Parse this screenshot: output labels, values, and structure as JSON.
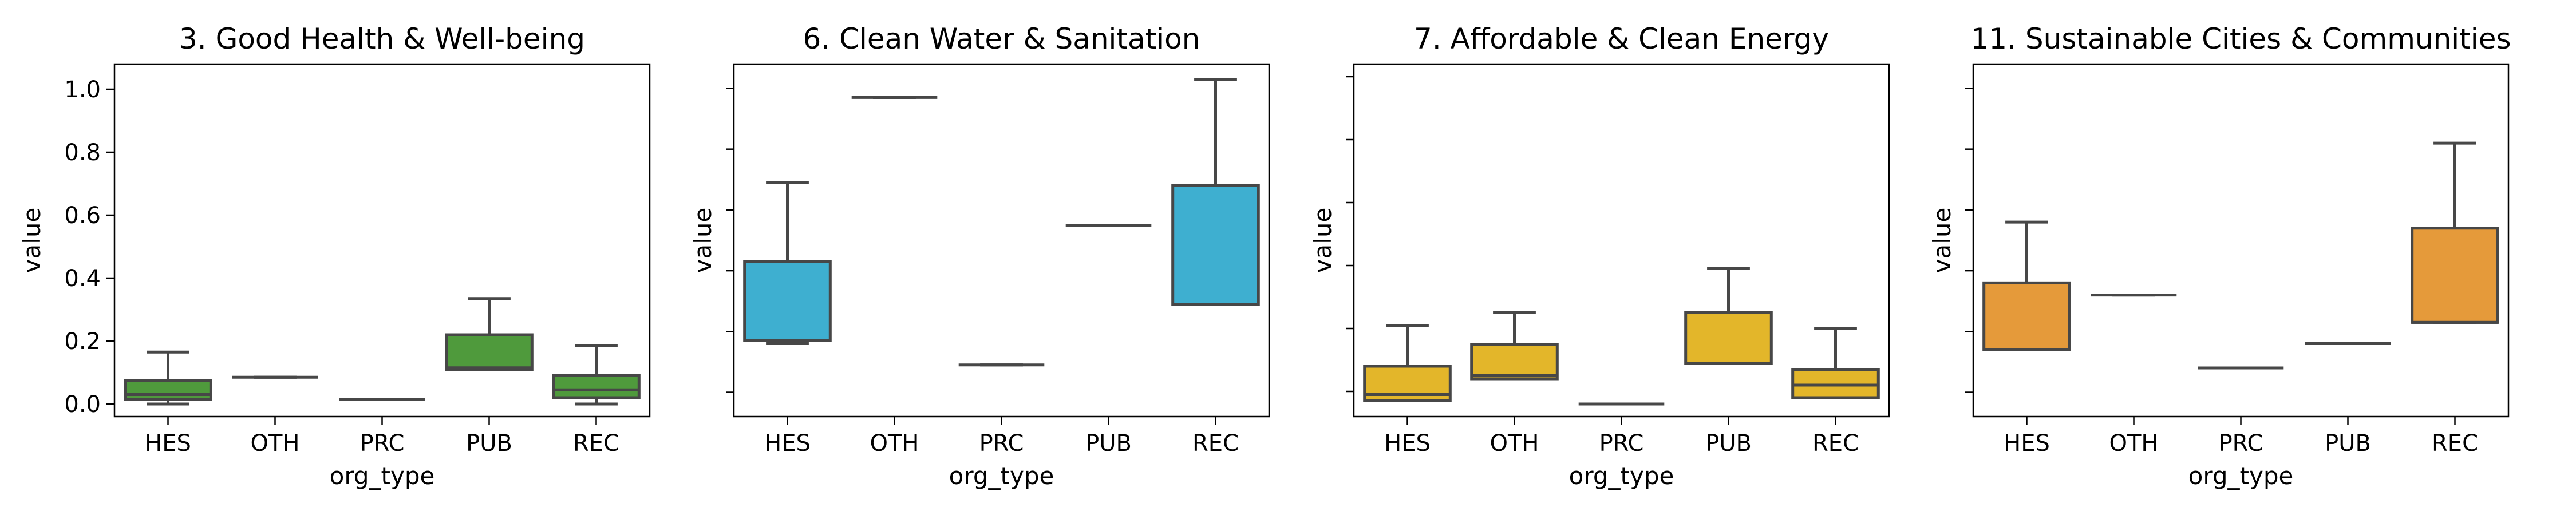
{
  "chart_data": [
    {
      "type": "box",
      "title": "3. Good Health & Well-being",
      "xlabel": "org_type",
      "ylabel": "value",
      "categories": [
        "HES",
        "OTH",
        "PRC",
        "PUB",
        "REC"
      ],
      "ylim": [
        -0.04,
        1.08
      ],
      "yticks": [
        0.0,
        0.2,
        0.4,
        0.6,
        0.8,
        1.0
      ],
      "ytick_labels": [
        "0.0",
        "0.2",
        "0.4",
        "0.6",
        "0.8",
        "1.0"
      ],
      "color": "#4f9a3c",
      "boxes": [
        {
          "whislo": 0.0,
          "q1": 0.015,
          "med": 0.03,
          "q3": 0.075,
          "whishi": 0.165
        },
        {
          "whislo": 0.085,
          "q1": 0.085,
          "med": 0.085,
          "q3": 0.085,
          "whishi": 0.085
        },
        {
          "whislo": 0.015,
          "q1": 0.015,
          "med": 0.015,
          "q3": 0.015,
          "whishi": 0.015
        },
        {
          "whislo": 0.11,
          "q1": 0.11,
          "med": 0.115,
          "q3": 0.22,
          "whishi": 0.335
        },
        {
          "whislo": 0.0,
          "q1": 0.02,
          "med": 0.045,
          "q3": 0.09,
          "whishi": 0.185
        }
      ]
    },
    {
      "type": "box",
      "title": "6. Clean Water & Sanitation",
      "xlabel": "org_type",
      "ylabel": "value",
      "categories": [
        "HES",
        "OTH",
        "PRC",
        "PUB",
        "REC"
      ],
      "ylim": [
        -0.08,
        1.08
      ],
      "yticks": [
        0.0,
        0.2,
        0.4,
        0.6,
        0.8,
        1.0
      ],
      "ytick_labels": [],
      "color": "#3eafd0",
      "boxes": [
        {
          "whislo": 0.16,
          "q1": 0.17,
          "med": 0.17,
          "q3": 0.43,
          "whishi": 0.69
        },
        {
          "whislo": 0.97,
          "q1": 0.97,
          "med": 0.97,
          "q3": 0.97,
          "whishi": 0.97
        },
        {
          "whislo": 0.09,
          "q1": 0.09,
          "med": 0.09,
          "q3": 0.09,
          "whishi": 0.09
        },
        {
          "whislo": 0.55,
          "q1": 0.55,
          "med": 0.55,
          "q3": 0.55,
          "whishi": 0.55
        },
        {
          "whislo": 0.29,
          "q1": 0.29,
          "med": 0.29,
          "q3": 0.68,
          "whishi": 1.03
        }
      ]
    },
    {
      "type": "box",
      "title": "7. Affordable & Clean Energy",
      "xlabel": "org_type",
      "ylabel": "value",
      "categories": [
        "HES",
        "OTH",
        "PRC",
        "PUB",
        "REC"
      ],
      "ylim": [
        -0.08,
        1.04
      ],
      "yticks": [
        0.0,
        0.2,
        0.4,
        0.6,
        0.8,
        1.0
      ],
      "ytick_labels": [],
      "color": "#e3b62a",
      "boxes": [
        {
          "whislo": -0.03,
          "q1": -0.03,
          "med": -0.01,
          "q3": 0.08,
          "whishi": 0.21
        },
        {
          "whislo": 0.04,
          "q1": 0.04,
          "med": 0.05,
          "q3": 0.15,
          "whishi": 0.25
        },
        {
          "whislo": -0.04,
          "q1": -0.04,
          "med": -0.04,
          "q3": -0.04,
          "whishi": -0.04
        },
        {
          "whislo": 0.09,
          "q1": 0.09,
          "med": 0.09,
          "q3": 0.25,
          "whishi": 0.39
        },
        {
          "whislo": -0.02,
          "q1": -0.02,
          "med": 0.02,
          "q3": 0.07,
          "whishi": 0.2
        }
      ]
    },
    {
      "type": "box",
      "title": "11.  Sustainable Cities & Communities",
      "xlabel": "org_type",
      "ylabel": "value",
      "categories": [
        "HES",
        "OTH",
        "PRC",
        "PUB",
        "REC"
      ],
      "ylim": [
        -0.08,
        1.08
      ],
      "yticks": [
        0.0,
        0.2,
        0.4,
        0.6,
        0.8,
        1.0
      ],
      "ytick_labels": [],
      "color": "#e59a3a",
      "boxes": [
        {
          "whislo": 0.14,
          "q1": 0.14,
          "med": 0.14,
          "q3": 0.36,
          "whishi": 0.56
        },
        {
          "whislo": 0.32,
          "q1": 0.32,
          "med": 0.32,
          "q3": 0.32,
          "whishi": 0.32
        },
        {
          "whislo": 0.08,
          "q1": 0.08,
          "med": 0.08,
          "q3": 0.08,
          "whishi": 0.08
        },
        {
          "whislo": 0.16,
          "q1": 0.16,
          "med": 0.16,
          "q3": 0.16,
          "whishi": 0.16
        },
        {
          "whislo": 0.23,
          "q1": 0.23,
          "med": 0.23,
          "q3": 0.54,
          "whishi": 0.82
        }
      ]
    }
  ]
}
